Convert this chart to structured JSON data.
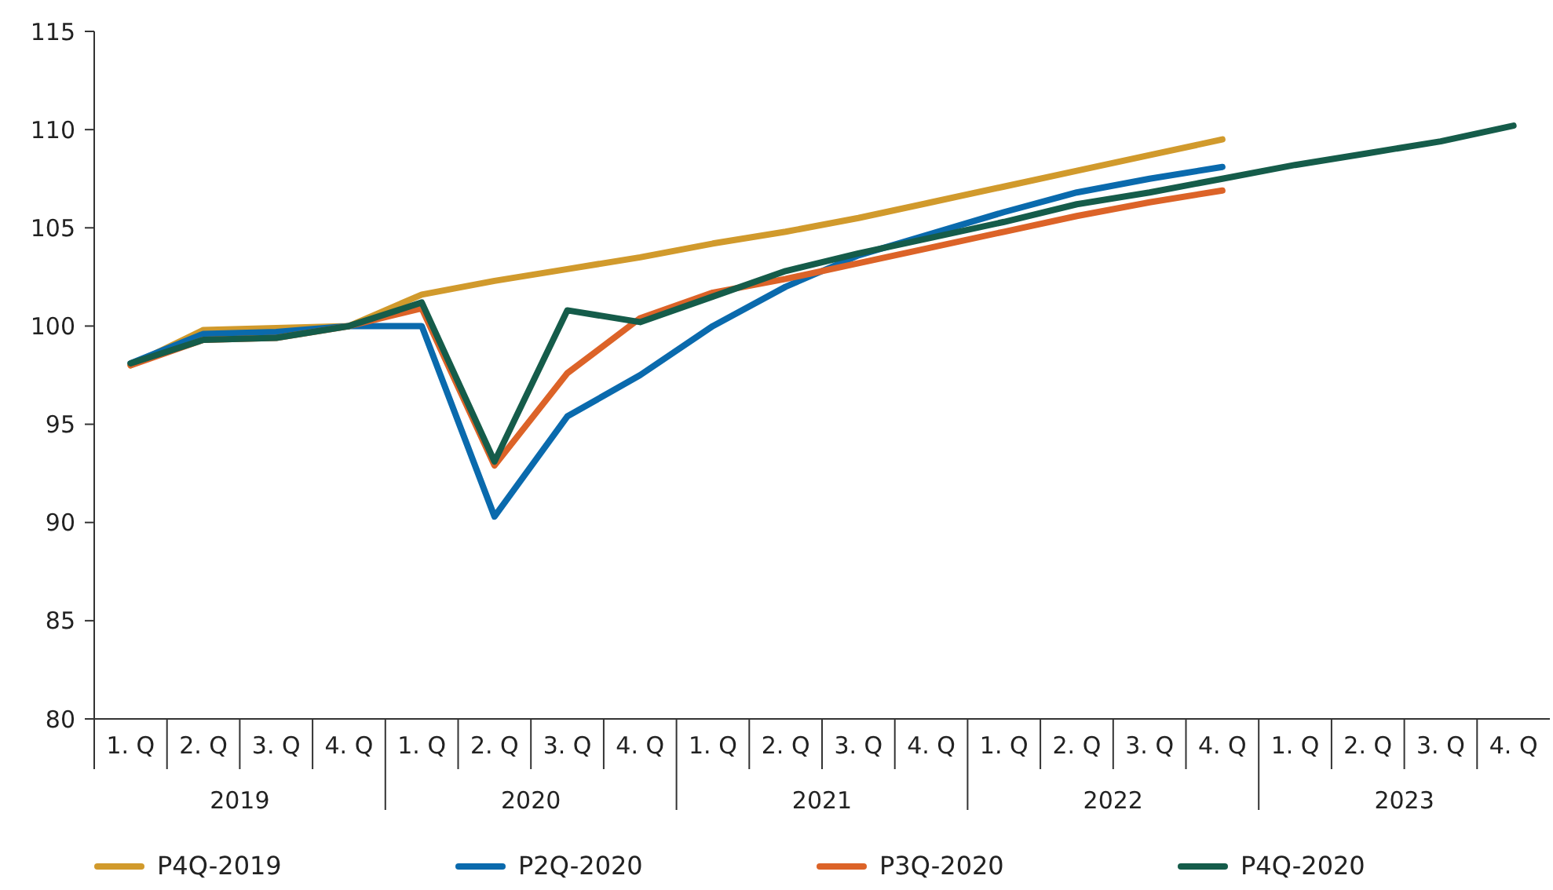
{
  "chart_data": {
    "type": "line",
    "categories": [
      "1. Q",
      "2. Q",
      "3. Q",
      "4. Q",
      "1. Q",
      "2. Q",
      "3. Q",
      "4. Q",
      "1. Q",
      "2. Q",
      "3. Q",
      "4. Q",
      "1. Q",
      "2. Q",
      "3. Q",
      "4. Q",
      "1. Q",
      "2. Q",
      "3. Q",
      "4. Q"
    ],
    "annotations": [
      "2019",
      "2020",
      "2021",
      "2022",
      "2023"
    ],
    "ylim": [
      80,
      115
    ],
    "yticks": [
      80,
      85,
      90,
      95,
      100,
      105,
      110,
      115
    ],
    "grid": false,
    "legend": "bottom",
    "marker": "none",
    "line_style": "solid",
    "series": [
      {
        "name": "P4Q-2019",
        "color": "#d19a2c",
        "values": [
          98.0,
          99.8,
          99.9,
          100.0,
          101.6,
          102.3,
          102.9,
          103.5,
          104.2,
          104.8,
          105.5,
          106.3,
          107.1,
          107.9,
          108.7,
          109.5,
          null,
          null,
          null,
          null
        ]
      },
      {
        "name": "P2Q-2020",
        "color": "#0a6aad",
        "values": [
          98.1,
          99.6,
          99.7,
          100.0,
          100.0,
          90.3,
          95.4,
          97.5,
          100.0,
          102.0,
          103.6,
          104.7,
          105.8,
          106.8,
          107.5,
          108.1,
          null,
          null,
          null,
          null
        ]
      },
      {
        "name": "P3Q-2020",
        "color": "#dc6328",
        "values": [
          98.0,
          99.3,
          99.4,
          100.0,
          100.9,
          92.9,
          97.6,
          100.4,
          101.7,
          102.4,
          103.2,
          104.0,
          104.8,
          105.6,
          106.3,
          106.9,
          null,
          null,
          null,
          null
        ]
      },
      {
        "name": "P4Q-2020",
        "color": "#155c4a",
        "values": [
          98.1,
          99.3,
          99.4,
          100.0,
          101.2,
          93.1,
          100.8,
          100.2,
          101.5,
          102.8,
          103.7,
          104.5,
          105.3,
          106.2,
          106.8,
          107.5,
          108.2,
          108.8,
          109.4,
          110.2
        ]
      }
    ]
  }
}
